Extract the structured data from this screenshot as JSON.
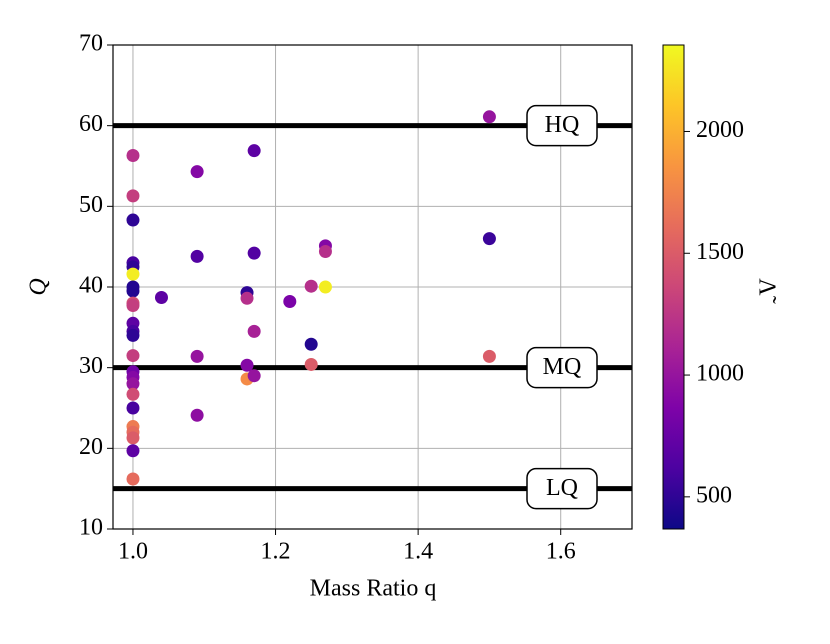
{
  "chart_data": {
    "type": "scatter",
    "x_label": "Mass Ratio q",
    "y_label": "Q",
    "colorbar_label": "Λ̃",
    "x": [
      1.0,
      1.0,
      1.0,
      1.0,
      1.0,
      1.0,
      1.0,
      1.0,
      1.0,
      1.0,
      1.0,
      1.0,
      1.0,
      1.0,
      1.0,
      1.0,
      1.0,
      1.0,
      1.0,
      1.0,
      1.0,
      1.0,
      1.0,
      1.0,
      1.04,
      1.09,
      1.09,
      1.09,
      1.09,
      1.16,
      1.16,
      1.16,
      1.16,
      1.17,
      1.17,
      1.17,
      1.17,
      1.22,
      1.25,
      1.25,
      1.25,
      1.27,
      1.27,
      1.27,
      1.5,
      1.5,
      1.5
    ],
    "values": [
      56.3,
      51.3,
      48.3,
      43.0,
      42.5,
      41.6,
      40.0,
      39.5,
      38.0,
      37.7,
      35.5,
      34.5,
      34.0,
      31.5,
      29.5,
      28.8,
      28.0,
      26.7,
      25.0,
      22.7,
      22.0,
      21.3,
      19.7,
      16.2,
      38.7,
      54.3,
      43.8,
      31.4,
      24.1,
      39.3,
      38.6,
      30.3,
      28.6,
      56.9,
      44.2,
      34.5,
      29.0,
      38.2,
      40.1,
      32.9,
      30.4,
      45.1,
      44.4,
      40.0,
      61.1,
      46.0,
      31.4
    ],
    "color_values": [
      1200,
      1300,
      500,
      600,
      500,
      2300,
      450,
      450,
      1400,
      1300,
      700,
      600,
      500,
      1300,
      800,
      900,
      1000,
      1400,
      600,
      1700,
      1600,
      1500,
      700,
      1600,
      700,
      900,
      650,
      1000,
      950,
      500,
      1200,
      900,
      1800,
      700,
      650,
      1100,
      1000,
      850,
      1200,
      450,
      1500,
      900,
      1200,
      2300,
      1000,
      550,
      1500
    ],
    "colormap": "plasma",
    "clim": [
      368,
      2355
    ],
    "cticks": [
      500,
      1000,
      1500,
      2000
    ],
    "xlim": [
      0.972,
      1.7
    ],
    "ylim": [
      10,
      70
    ],
    "xticks": [
      {
        "value": 1,
        "label": "1.0"
      },
      1.2,
      1.4,
      1.6
    ],
    "yticks": [
      10,
      20,
      30,
      40,
      50,
      60,
      70
    ],
    "grid": true,
    "thresholds": [
      {
        "label": "HQ",
        "value": 60
      },
      {
        "label": "MQ",
        "value": 30
      },
      {
        "label": "LQ",
        "value": 15
      }
    ]
  }
}
